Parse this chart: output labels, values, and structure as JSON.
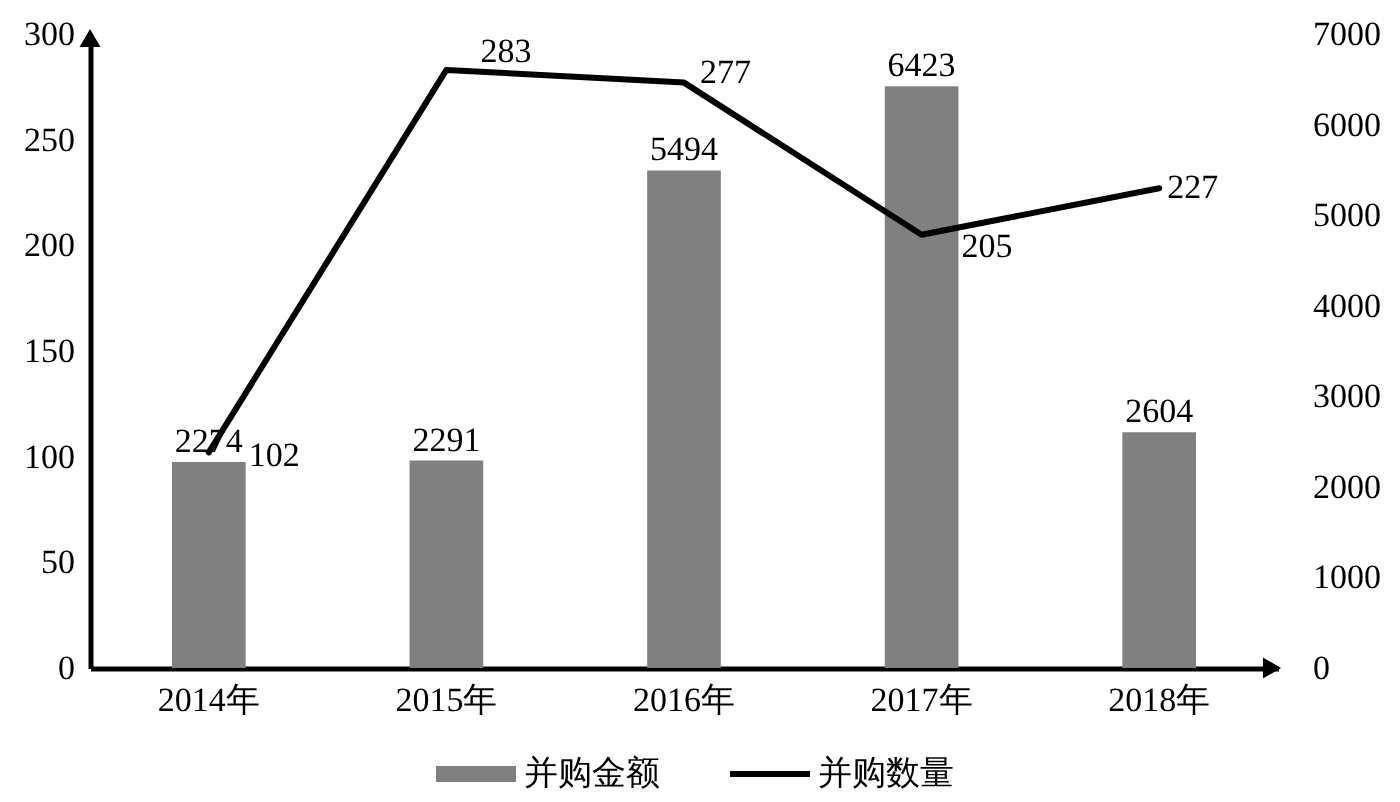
{
  "chart_data": {
    "type": "bar",
    "categories": [
      "2014年",
      "2015年",
      "2016年",
      "2017年",
      "2018年"
    ],
    "series": [
      {
        "name": "并购金额",
        "color": "#808080",
        "axis": "y2",
        "values": [
          2274,
          2291,
          5494,
          6423,
          2604
        ]
      },
      {
        "name": "并购数量",
        "type": "line",
        "color": "#000000",
        "values": [
          102,
          283,
          277,
          205,
          227
        ]
      }
    ],
    "ylim": [
      0,
      300
    ],
    "yticks": [
      0,
      50,
      100,
      150,
      200,
      250,
      300
    ],
    "y2lim": [
      0,
      7000
    ],
    "y2ticks": [
      0,
      1000,
      2000,
      3000,
      4000,
      5000,
      6000,
      7000
    ],
    "data_labels": true,
    "legend": "bottom"
  }
}
